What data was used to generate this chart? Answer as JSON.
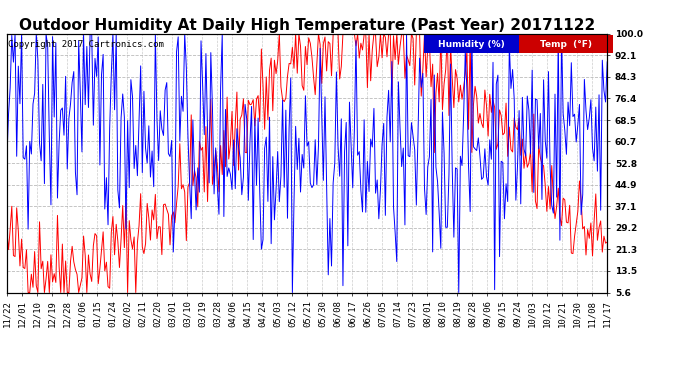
{
  "title": "Outdoor Humidity At Daily High Temperature (Past Year) 20171122",
  "copyright": "Copyright 2017 Cartronics.com",
  "yticks": [
    100.0,
    92.1,
    84.3,
    76.4,
    68.5,
    60.7,
    52.8,
    44.9,
    37.1,
    29.2,
    21.3,
    13.5,
    5.6
  ],
  "ymin": 5.6,
  "ymax": 100.0,
  "humidity_color": "#0000ff",
  "temp_color": "#ff0000",
  "background_color": "#ffffff",
  "plot_bg_color": "#ffffff",
  "legend_humidity_bg": "#0000cc",
  "legend_temp_bg": "#cc0000",
  "legend_humidity_label": "Humidity (%)",
  "legend_temp_label": "Temp  (°F)",
  "xtick_labels": [
    "11/22",
    "12/01",
    "12/10",
    "12/19",
    "12/28",
    "01/06",
    "01/15",
    "01/24",
    "02/02",
    "02/11",
    "02/20",
    "03/01",
    "03/10",
    "03/19",
    "03/28",
    "04/06",
    "04/15",
    "04/24",
    "05/03",
    "05/12",
    "05/21",
    "05/30",
    "06/08",
    "06/17",
    "06/26",
    "07/05",
    "07/14",
    "07/23",
    "08/01",
    "08/10",
    "08/19",
    "08/28",
    "09/06",
    "09/15",
    "09/24",
    "10/03",
    "10/12",
    "10/21",
    "10/30",
    "11/08",
    "11/17"
  ],
  "grid_color": "#aaaaaa",
  "title_fontsize": 11,
  "tick_fontsize": 6.5,
  "copyright_fontsize": 6.5,
  "n_pts_per_tick": 9
}
